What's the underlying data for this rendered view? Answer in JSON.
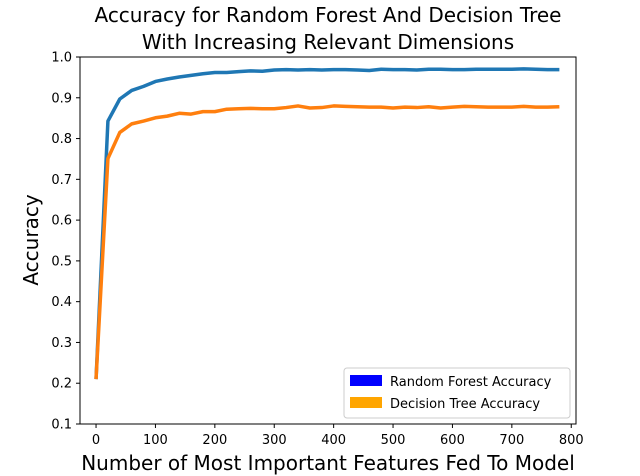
{
  "chart_data": {
    "type": "line",
    "title_lines": [
      "Accuracy for Random Forest And Decision Tree",
      "With Increasing Relevant Dimensions"
    ],
    "xlabel": "Number of Most Important Features Fed To Model",
    "ylabel": "Accuracy",
    "xlim": [
      -27,
      808
    ],
    "ylim": [
      0.1,
      1.0
    ],
    "xticks": [
      0,
      100,
      200,
      300,
      400,
      500,
      600,
      700,
      800
    ],
    "yticks": [
      0.1,
      0.2,
      0.3,
      0.4,
      0.5,
      0.6,
      0.7,
      0.8,
      0.9,
      1.0
    ],
    "x": [
      0,
      20,
      40,
      60,
      80,
      100,
      120,
      140,
      160,
      180,
      200,
      220,
      240,
      260,
      280,
      300,
      320,
      340,
      360,
      380,
      400,
      420,
      440,
      460,
      480,
      500,
      520,
      540,
      560,
      580,
      600,
      620,
      640,
      660,
      680,
      700,
      720,
      740,
      760,
      780
    ],
    "series": [
      {
        "name": "Random Forest Accuracy",
        "line_color": "#1f77b4",
        "legend_color": "#0000ff",
        "values": [
          0.21,
          0.843,
          0.897,
          0.918,
          0.928,
          0.94,
          0.946,
          0.951,
          0.955,
          0.959,
          0.962,
          0.962,
          0.964,
          0.966,
          0.965,
          0.968,
          0.969,
          0.968,
          0.969,
          0.968,
          0.969,
          0.969,
          0.968,
          0.967,
          0.97,
          0.969,
          0.969,
          0.968,
          0.97,
          0.97,
          0.969,
          0.969,
          0.97,
          0.97,
          0.97,
          0.97,
          0.971,
          0.97,
          0.969,
          0.969
        ]
      },
      {
        "name": "Decision Tree Accuracy",
        "line_color": "#ff7f0e",
        "legend_color": "#ffa500",
        "values": [
          0.21,
          0.751,
          0.815,
          0.836,
          0.843,
          0.851,
          0.855,
          0.862,
          0.86,
          0.866,
          0.866,
          0.872,
          0.873,
          0.874,
          0.873,
          0.873,
          0.876,
          0.88,
          0.875,
          0.876,
          0.88,
          0.879,
          0.878,
          0.877,
          0.877,
          0.875,
          0.877,
          0.876,
          0.878,
          0.875,
          0.877,
          0.879,
          0.878,
          0.877,
          0.877,
          0.877,
          0.879,
          0.877,
          0.877,
          0.878
        ]
      }
    ],
    "legend_position": "lower-right",
    "grid": false
  }
}
